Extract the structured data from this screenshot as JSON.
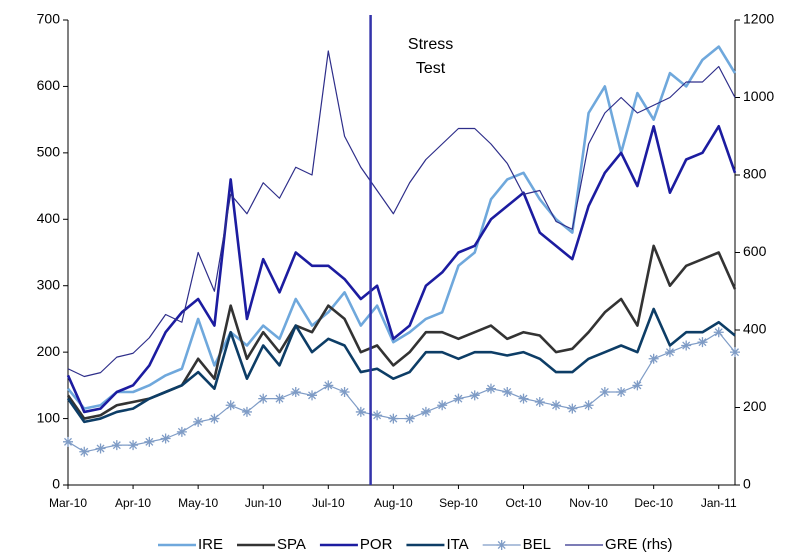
{
  "chart_data": {
    "type": "line",
    "categories": [
      "Mar-10",
      null,
      null,
      null,
      "Apr-10",
      null,
      null,
      null,
      "May-10",
      null,
      null,
      null,
      "Jun-10",
      null,
      null,
      null,
      "Jul-10",
      null,
      null,
      null,
      "Aug-10",
      null,
      null,
      null,
      "Sep-10",
      null,
      null,
      null,
      "Oct-10",
      null,
      null,
      null,
      "Nov-10",
      null,
      null,
      null,
      "Dec-10",
      null,
      null,
      null,
      "Jan-11",
      null
    ],
    "series": [
      {
        "name": "IRE",
        "color": "#6fa8dc",
        "values": [
          145,
          115,
          120,
          140,
          140,
          150,
          165,
          175,
          250,
          180,
          230,
          210,
          240,
          220,
          280,
          240,
          260,
          290,
          240,
          270,
          215,
          230,
          250,
          260,
          330,
          350,
          430,
          460,
          470,
          430,
          400,
          380,
          560,
          600,
          500,
          590,
          550,
          620,
          600,
          640,
          660,
          620
        ]
      },
      {
        "name": "SPA",
        "color": "#333333",
        "values": [
          135,
          100,
          105,
          120,
          125,
          130,
          140,
          150,
          190,
          160,
          270,
          190,
          230,
          200,
          240,
          230,
          270,
          250,
          200,
          210,
          180,
          200,
          230,
          230,
          220,
          230,
          240,
          220,
          230,
          225,
          200,
          205,
          230,
          260,
          280,
          240,
          360,
          300,
          330,
          340,
          350,
          295
        ]
      },
      {
        "name": "POR",
        "color": "#1c1ca0",
        "values": [
          165,
          110,
          115,
          140,
          150,
          180,
          230,
          260,
          280,
          240,
          460,
          250,
          340,
          290,
          350,
          330,
          330,
          310,
          280,
          300,
          220,
          240,
          300,
          320,
          350,
          360,
          400,
          420,
          440,
          380,
          360,
          340,
          420,
          470,
          500,
          450,
          540,
          440,
          490,
          500,
          540,
          470
        ]
      },
      {
        "name": "ITA",
        "color": "#0d3d66",
        "values": [
          130,
          95,
          100,
          110,
          115,
          130,
          140,
          150,
          170,
          145,
          230,
          160,
          210,
          180,
          240,
          200,
          220,
          210,
          170,
          175,
          160,
          170,
          200,
          200,
          190,
          200,
          200,
          195,
          200,
          190,
          170,
          170,
          190,
          200,
          210,
          200,
          265,
          210,
          230,
          230,
          245,
          225
        ]
      },
      {
        "name": "BEL",
        "color": "#7f9cc6",
        "marker": "star",
        "values": [
          65,
          50,
          55,
          60,
          60,
          65,
          70,
          80,
          95,
          100,
          120,
          110,
          130,
          130,
          140,
          135,
          150,
          140,
          110,
          105,
          100,
          100,
          110,
          120,
          130,
          135,
          145,
          140,
          130,
          125,
          120,
          115,
          120,
          140,
          140,
          150,
          190,
          200,
          210,
          215,
          230,
          200
        ]
      },
      {
        "name": "GRE (rhs)",
        "color": "#2e2e8a",
        "axis": "y2",
        "values": [
          300,
          280,
          290,
          330,
          340,
          380,
          440,
          420,
          600,
          500,
          750,
          700,
          780,
          740,
          820,
          800,
          1120,
          900,
          820,
          760,
          700,
          780,
          840,
          880,
          920,
          920,
          880,
          830,
          750,
          760,
          680,
          660,
          880,
          960,
          1000,
          960,
          980,
          1000,
          1040,
          1040,
          1080,
          1000
        ]
      }
    ],
    "ylim": [
      0,
      700
    ],
    "yticks": [
      0,
      100,
      200,
      300,
      400,
      500,
      600,
      700
    ],
    "y2lim": [
      0,
      1200
    ],
    "y2ticks": [
      0,
      200,
      400,
      600,
      800,
      1000,
      1200
    ],
    "annotations": [
      {
        "text": [
          "Stress",
          "Test"
        ],
        "x": 18.6,
        "color": "#3333aa"
      }
    ],
    "legend": "bottom"
  }
}
